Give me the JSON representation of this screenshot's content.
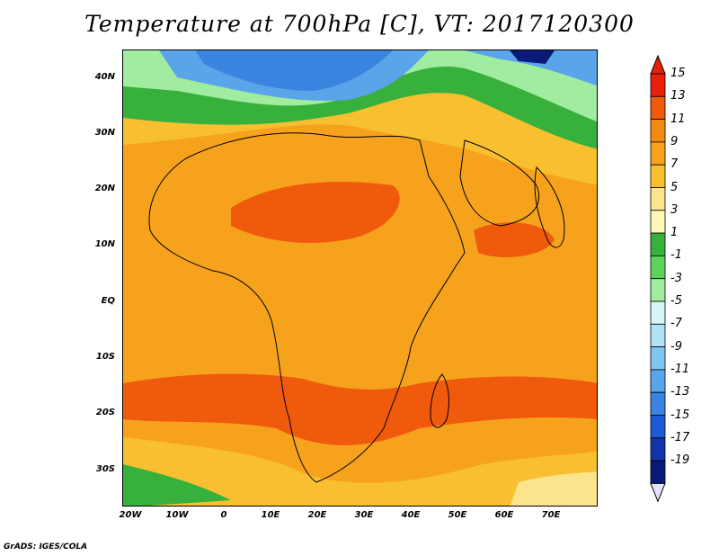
{
  "title": "Temperature at 700hPa [C], VT: 2017120300",
  "credit": "GrADS: IGES/COLA",
  "lat_labels": [
    "40N",
    "30N",
    "20N",
    "10N",
    "EQ",
    "10S",
    "20S",
    "30S"
  ],
  "lon_labels": [
    "20W",
    "10W",
    "0",
    "10E",
    "20E",
    "30E",
    "40E",
    "50E",
    "60E",
    "70E"
  ],
  "colorbar": {
    "labels": [
      "15",
      "13",
      "11",
      "9",
      "7",
      "5",
      "3",
      "1",
      "-1",
      "-3",
      "-5",
      "-7",
      "-9",
      "-11",
      "-13",
      "-15",
      "-17",
      "-19"
    ],
    "colors": [
      "#e8200a",
      "#f05a0c",
      "#f58a10",
      "#f6a21c",
      "#f8c030",
      "#fbe48c",
      "#fff7b8",
      "#38b03c",
      "#5cd25c",
      "#a0eca0",
      "#d4f6f6",
      "#aee2f6",
      "#80c4f2",
      "#5aa4ea",
      "#3a84e0",
      "#1e5ad6",
      "#1234a8",
      "#0a1a78"
    ],
    "top_arrow": "#e8200a",
    "bottom_arrow": "#e6e0ff"
  }
}
